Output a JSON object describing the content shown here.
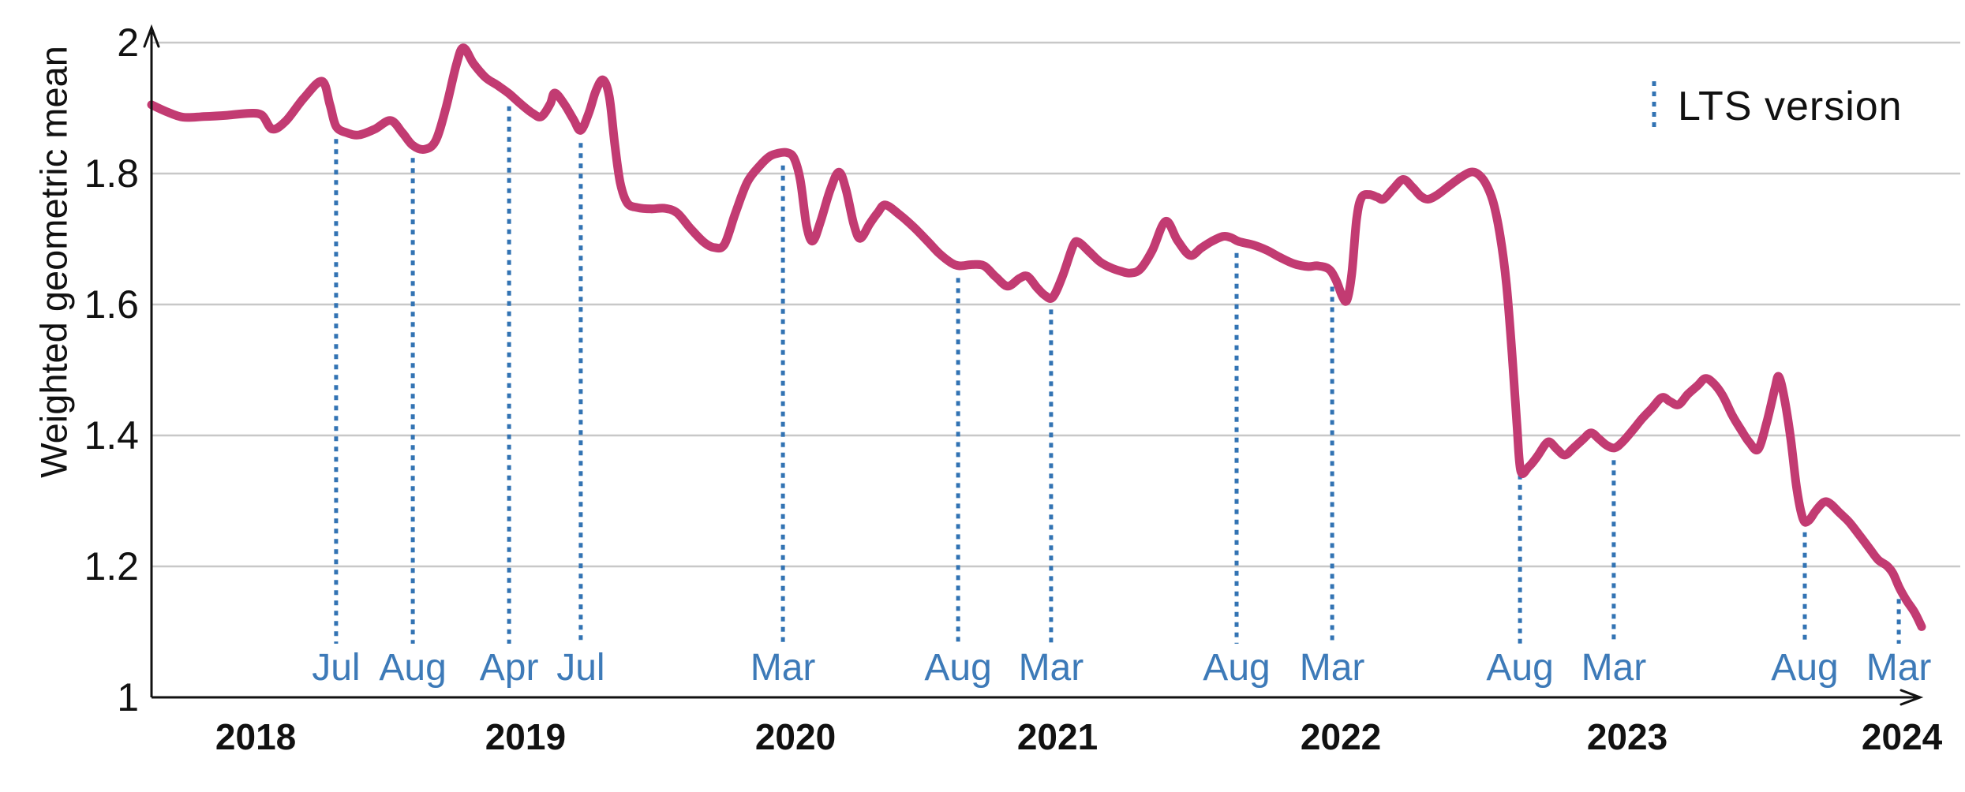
{
  "chart_data": {
    "type": "line",
    "title": "",
    "ylabel": "Weighted geometric mean",
    "ylim": [
      1,
      2
    ],
    "grid": true,
    "legend_position": "top-right",
    "legend": {
      "label": "LTS version",
      "marker_style": "vertical-dotted-line"
    },
    "y_ticks": [
      {
        "value": 2,
        "label": "2"
      },
      {
        "value": 1.8,
        "label": "1.8"
      },
      {
        "value": 1.6,
        "label": "1.6"
      },
      {
        "value": 1.4,
        "label": "1.4"
      },
      {
        "value": 1.2,
        "label": "1.2"
      },
      {
        "value": 1,
        "label": "1"
      }
    ],
    "x_year_ticks": [
      {
        "label": "2018",
        "pos": 0.0589
      },
      {
        "label": "2019",
        "pos": 0.2113
      },
      {
        "label": "2020",
        "pos": 0.3638
      },
      {
        "label": "2021",
        "pos": 0.5118
      },
      {
        "label": "2022",
        "pos": 0.6719
      },
      {
        "label": "2023",
        "pos": 0.8337
      },
      {
        "label": "2024",
        "pos": 0.9889
      }
    ],
    "lts_markers": [
      {
        "label": "Jul",
        "pos": 0.1043
      },
      {
        "label": "Aug",
        "pos": 0.1476
      },
      {
        "label": "Apr",
        "pos": 0.202
      },
      {
        "label": "Jul",
        "pos": 0.2425
      },
      {
        "label": "Mar",
        "pos": 0.3567
      },
      {
        "label": "Aug",
        "pos": 0.4557
      },
      {
        "label": "Mar",
        "pos": 0.5082
      },
      {
        "label": "Aug",
        "pos": 0.613
      },
      {
        "label": "Mar",
        "pos": 0.667
      },
      {
        "label": "Aug",
        "pos": 0.7731
      },
      {
        "label": "Mar",
        "pos": 0.8261
      },
      {
        "label": "Aug",
        "pos": 0.934
      },
      {
        "label": "Mar",
        "pos": 0.9871
      }
    ],
    "series": [
      {
        "name": "Weighted geometric mean",
        "points": [
          [
            0.0,
            1.905
          ],
          [
            0.008,
            1.895
          ],
          [
            0.0178,
            1.886
          ],
          [
            0.0294,
            1.887
          ],
          [
            0.0428,
            1.889
          ],
          [
            0.0553,
            1.892
          ],
          [
            0.0624,
            1.889
          ],
          [
            0.0682,
            1.868
          ],
          [
            0.0758,
            1.88
          ],
          [
            0.086,
            1.915
          ],
          [
            0.0963,
            1.941
          ],
          [
            0.1008,
            1.905
          ],
          [
            0.1043,
            1.872
          ],
          [
            0.1106,
            1.862
          ],
          [
            0.1173,
            1.859
          ],
          [
            0.1262,
            1.868
          ],
          [
            0.1351,
            1.881
          ],
          [
            0.1418,
            1.862
          ],
          [
            0.1476,
            1.843
          ],
          [
            0.1543,
            1.837
          ],
          [
            0.1605,
            1.85
          ],
          [
            0.1663,
            1.9
          ],
          [
            0.1721,
            1.965
          ],
          [
            0.1761,
            1.992
          ],
          [
            0.1819,
            1.968
          ],
          [
            0.1886,
            1.947
          ],
          [
            0.1953,
            1.935
          ],
          [
            0.202,
            1.922
          ],
          [
            0.2087,
            1.906
          ],
          [
            0.2153,
            1.892
          ],
          [
            0.2202,
            1.887
          ],
          [
            0.2252,
            1.906
          ],
          [
            0.2278,
            1.923
          ],
          [
            0.2332,
            1.906
          ],
          [
            0.2385,
            1.882
          ],
          [
            0.2425,
            1.866
          ],
          [
            0.247,
            1.892
          ],
          [
            0.251,
            1.926
          ],
          [
            0.255,
            1.943
          ],
          [
            0.2586,
            1.918
          ],
          [
            0.2617,
            1.845
          ],
          [
            0.2648,
            1.786
          ],
          [
            0.2688,
            1.755
          ],
          [
            0.2746,
            1.748
          ],
          [
            0.2822,
            1.746
          ],
          [
            0.2898,
            1.747
          ],
          [
            0.2969,
            1.74
          ],
          [
            0.3045,
            1.716
          ],
          [
            0.3121,
            1.695
          ],
          [
            0.3179,
            1.687
          ],
          [
            0.3237,
            1.692
          ],
          [
            0.3299,
            1.74
          ],
          [
            0.3366,
            1.787
          ],
          [
            0.3437,
            1.812
          ],
          [
            0.3491,
            1.826
          ],
          [
            0.354,
            1.831
          ],
          [
            0.3589,
            1.832
          ],
          [
            0.3629,
            1.824
          ],
          [
            0.3665,
            1.79
          ],
          [
            0.3701,
            1.72
          ],
          [
            0.3736,
            1.697
          ],
          [
            0.3781,
            1.728
          ],
          [
            0.3834,
            1.775
          ],
          [
            0.3883,
            1.802
          ],
          [
            0.3923,
            1.776
          ],
          [
            0.3968,
            1.722
          ],
          [
            0.4004,
            1.701
          ],
          [
            0.4057,
            1.723
          ],
          [
            0.4102,
            1.74
          ],
          [
            0.4146,
            1.752
          ],
          [
            0.4227,
            1.737
          ],
          [
            0.4307,
            1.718
          ],
          [
            0.4383,
            1.697
          ],
          [
            0.445,
            1.678
          ],
          [
            0.4516,
            1.664
          ],
          [
            0.4565,
            1.659
          ],
          [
            0.4637,
            1.661
          ],
          [
            0.4704,
            1.659
          ],
          [
            0.477,
            1.642
          ],
          [
            0.4837,
            1.628
          ],
          [
            0.4904,
            1.64
          ],
          [
            0.4949,
            1.643
          ],
          [
            0.5002,
            1.626
          ],
          [
            0.5047,
            1.614
          ],
          [
            0.5091,
            1.611
          ],
          [
            0.5145,
            1.642
          ],
          [
            0.5207,
            1.69
          ],
          [
            0.5238,
            1.695
          ],
          [
            0.5296,
            1.681
          ],
          [
            0.5359,
            1.665
          ],
          [
            0.5421,
            1.656
          ],
          [
            0.5475,
            1.651
          ],
          [
            0.5528,
            1.648
          ],
          [
            0.5586,
            1.654
          ],
          [
            0.5653,
            1.682
          ],
          [
            0.5729,
            1.727
          ],
          [
            0.5796,
            1.698
          ],
          [
            0.5867,
            1.675
          ],
          [
            0.5929,
            1.686
          ],
          [
            0.5987,
            1.696
          ],
          [
            0.6054,
            1.704
          ],
          [
            0.6099,
            1.702
          ],
          [
            0.6144,
            1.696
          ],
          [
            0.6224,
            1.691
          ],
          [
            0.63,
            1.683
          ],
          [
            0.6375,
            1.672
          ],
          [
            0.6456,
            1.662
          ],
          [
            0.6531,
            1.658
          ],
          [
            0.6589,
            1.659
          ],
          [
            0.6652,
            1.654
          ],
          [
            0.6692,
            1.637
          ],
          [
            0.6728,
            1.612
          ],
          [
            0.6754,
            1.607
          ],
          [
            0.6781,
            1.648
          ],
          [
            0.6808,
            1.73
          ],
          [
            0.6835,
            1.763
          ],
          [
            0.6879,
            1.768
          ],
          [
            0.6924,
            1.764
          ],
          [
            0.696,
            1.761
          ],
          [
            0.7013,
            1.776
          ],
          [
            0.7071,
            1.791
          ],
          [
            0.7124,
            1.779
          ],
          [
            0.7173,
            1.765
          ],
          [
            0.7214,
            1.761
          ],
          [
            0.7267,
            1.768
          ],
          [
            0.733,
            1.781
          ],
          [
            0.7396,
            1.794
          ],
          [
            0.745,
            1.802
          ],
          [
            0.749,
            1.8
          ],
          [
            0.7535,
            1.786
          ],
          [
            0.7579,
            1.757
          ],
          [
            0.7619,
            1.705
          ],
          [
            0.7655,
            1.63
          ],
          [
            0.7686,
            1.525
          ],
          [
            0.7713,
            1.42
          ],
          [
            0.7735,
            1.346
          ],
          [
            0.778,
            1.352
          ],
          [
            0.7829,
            1.368
          ],
          [
            0.7873,
            1.386
          ],
          [
            0.79,
            1.39
          ],
          [
            0.794,
            1.379
          ],
          [
            0.7985,
            1.37
          ],
          [
            0.8034,
            1.381
          ],
          [
            0.8087,
            1.394
          ],
          [
            0.8132,
            1.404
          ],
          [
            0.8176,
            1.395
          ],
          [
            0.8221,
            1.385
          ],
          [
            0.8266,
            1.381
          ],
          [
            0.831,
            1.39
          ],
          [
            0.8368,
            1.408
          ],
          [
            0.8422,
            1.426
          ],
          [
            0.8475,
            1.441
          ],
          [
            0.8533,
            1.458
          ],
          [
            0.8578,
            1.452
          ],
          [
            0.8627,
            1.447
          ],
          [
            0.868,
            1.463
          ],
          [
            0.8734,
            1.476
          ],
          [
            0.8778,
            1.487
          ],
          [
            0.8823,
            1.48
          ],
          [
            0.8876,
            1.461
          ],
          [
            0.893,
            1.431
          ],
          [
            0.8979,
            1.409
          ],
          [
            0.9028,
            1.389
          ],
          [
            0.9077,
            1.379
          ],
          [
            0.9126,
            1.421
          ],
          [
            0.9171,
            1.472
          ],
          [
            0.9193,
            1.49
          ],
          [
            0.9224,
            1.458
          ],
          [
            0.926,
            1.396
          ],
          [
            0.9295,
            1.318
          ],
          [
            0.9331,
            1.272
          ],
          [
            0.9362,
            1.27
          ],
          [
            0.9402,
            1.285
          ],
          [
            0.9447,
            1.298
          ],
          [
            0.9483,
            1.296
          ],
          [
            0.9536,
            1.282
          ],
          [
            0.959,
            1.268
          ],
          [
            0.9648,
            1.248
          ],
          [
            0.9706,
            1.227
          ],
          [
            0.9755,
            1.21
          ],
          [
            0.9804,
            1.201
          ],
          [
            0.9839,
            1.189
          ],
          [
            0.9875,
            1.167
          ],
          [
            0.9915,
            1.148
          ],
          [
            0.996,
            1.13
          ],
          [
            1.0,
            1.108
          ]
        ]
      }
    ]
  },
  "colors": {
    "line": "#c23b72",
    "lts_marker": "#3273b3",
    "month_label": "#3d7ab8",
    "year_label": "#111111",
    "tick_label": "#111111",
    "axis": "#111111",
    "grid": "#c8c8c8",
    "background": "#ffffff"
  }
}
